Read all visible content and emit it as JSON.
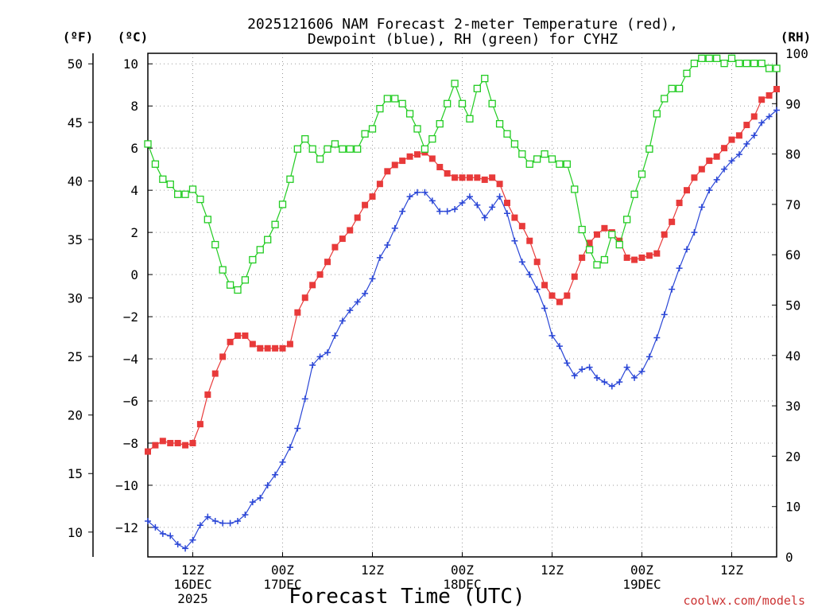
{
  "chart_data": {
    "type": "line",
    "title_lines": [
      "2025121606 NAM Forecast 2-meter Temperature (red),",
      "Dewpoint (blue), RH (green) for CYHZ"
    ],
    "xlabel": "Forecast Time (UTC)",
    "credit": "coolwx.com/models",
    "units": {
      "fahrenheit": "(ºF)",
      "celsius": "(ºC)",
      "rh": "(RH)"
    },
    "x_unit": "hours after 2025-12-16 06Z",
    "x_ticks": [
      {
        "x": 6,
        "lines": [
          "12Z",
          "16DEC",
          "2025"
        ]
      },
      {
        "x": 18,
        "lines": [
          "00Z",
          "17DEC"
        ]
      },
      {
        "x": 30,
        "lines": [
          "12Z"
        ]
      },
      {
        "x": 42,
        "lines": [
          "00Z",
          "18DEC"
        ]
      },
      {
        "x": 54,
        "lines": [
          "12Z"
        ]
      },
      {
        "x": 66,
        "lines": [
          "00Z",
          "19DEC"
        ]
      },
      {
        "x": 78,
        "lines": [
          "12Z"
        ]
      }
    ],
    "celsius_ticks": [
      -12,
      -10,
      -8,
      -6,
      -4,
      -2,
      0,
      2,
      4,
      6,
      8,
      10
    ],
    "fahrenheit_ticks": [
      10,
      15,
      20,
      25,
      30,
      35,
      40,
      45,
      50
    ],
    "rh_ticks": [
      0,
      10,
      20,
      30,
      40,
      50,
      60,
      70,
      80,
      90,
      100
    ],
    "x_range": [
      0,
      84
    ],
    "y_celsius_range": [
      -13.4,
      10.5
    ],
    "y_rh_range": [
      0,
      100
    ],
    "grid": true,
    "series": [
      {
        "name": "2-meter Temperature",
        "color": "#e83a3a",
        "marker": "filled-square",
        "axis": "celsius",
        "x": [
          0,
          1,
          2,
          3,
          4,
          5,
          6,
          7,
          8,
          9,
          10,
          11,
          12,
          13,
          14,
          15,
          16,
          17,
          18,
          19,
          20,
          21,
          22,
          23,
          24,
          25,
          26,
          27,
          28,
          29,
          30,
          31,
          32,
          33,
          34,
          35,
          36,
          37,
          38,
          39,
          40,
          41,
          42,
          43,
          44,
          45,
          46,
          47,
          48,
          49,
          50,
          51,
          52,
          53,
          54,
          55,
          56,
          57,
          58,
          59,
          60,
          61,
          62,
          63,
          64,
          65,
          66,
          67,
          68,
          69,
          70,
          71,
          72,
          73,
          74,
          75,
          76,
          77,
          78,
          79,
          80,
          81,
          82,
          83,
          84
        ],
        "values": [
          -8.4,
          -8.1,
          -7.9,
          -8.0,
          -8.0,
          -8.1,
          -8.0,
          -7.1,
          -5.7,
          -4.7,
          -3.9,
          -3.2,
          -2.9,
          -2.9,
          -3.3,
          -3.5,
          -3.5,
          -3.5,
          -3.5,
          -3.3,
          -1.8,
          -1.1,
          -0.5,
          0.0,
          0.6,
          1.3,
          1.7,
          2.1,
          2.7,
          3.3,
          3.7,
          4.3,
          4.9,
          5.2,
          5.4,
          5.6,
          5.7,
          5.8,
          5.5,
          5.1,
          4.8,
          4.6,
          4.6,
          4.6,
          4.6,
          4.5,
          4.6,
          4.3,
          3.4,
          2.7,
          2.3,
          1.6,
          0.6,
          -0.5,
          -1.0,
          -1.3,
          -1.0,
          -0.1,
          0.8,
          1.5,
          1.9,
          2.2,
          2.0,
          1.6,
          0.8,
          0.7,
          0.8,
          0.9,
          1.0,
          1.9,
          2.5,
          3.4,
          4.0,
          4.6,
          5.0,
          5.4,
          5.6,
          6.0,
          6.4,
          6.6,
          7.1,
          7.5,
          8.3,
          8.5,
          8.8
        ]
      },
      {
        "name": "Dewpoint",
        "color": "#2a46d6",
        "marker": "plus",
        "axis": "celsius",
        "x": [
          0,
          1,
          2,
          3,
          4,
          5,
          6,
          7,
          8,
          9,
          10,
          11,
          12,
          13,
          14,
          15,
          16,
          17,
          18,
          19,
          20,
          21,
          22,
          23,
          24,
          25,
          26,
          27,
          28,
          29,
          30,
          31,
          32,
          33,
          34,
          35,
          36,
          37,
          38,
          39,
          40,
          41,
          42,
          43,
          44,
          45,
          46,
          47,
          48,
          49,
          50,
          51,
          52,
          53,
          54,
          55,
          56,
          57,
          58,
          59,
          60,
          61,
          62,
          63,
          64,
          65,
          66,
          67,
          68,
          69,
          70,
          71,
          72,
          73,
          74,
          75,
          76,
          77,
          78,
          79,
          80,
          81,
          82,
          83,
          84
        ],
        "values": [
          -11.7,
          -12.0,
          -12.3,
          -12.4,
          -12.8,
          -13.0,
          -12.6,
          -11.9,
          -11.5,
          -11.7,
          -11.8,
          -11.8,
          -11.7,
          -11.4,
          -10.8,
          -10.6,
          -10.0,
          -9.5,
          -8.9,
          -8.2,
          -7.3,
          -5.9,
          -4.3,
          -3.9,
          -3.7,
          -2.9,
          -2.2,
          -1.7,
          -1.3,
          -0.9,
          -0.2,
          0.8,
          1.4,
          2.2,
          3.0,
          3.7,
          3.9,
          3.9,
          3.5,
          3.0,
          3.0,
          3.1,
          3.4,
          3.7,
          3.3,
          2.7,
          3.2,
          3.7,
          2.9,
          1.6,
          0.6,
          0.0,
          -0.7,
          -1.6,
          -2.9,
          -3.4,
          -4.2,
          -4.8,
          -4.5,
          -4.4,
          -4.9,
          -5.1,
          -5.3,
          -5.1,
          -4.4,
          -4.9,
          -4.6,
          -3.9,
          -3.0,
          -1.9,
          -0.7,
          0.3,
          1.2,
          2.0,
          3.2,
          4.0,
          4.5,
          5.0,
          5.4,
          5.7,
          6.2,
          6.6,
          7.2,
          7.5,
          7.8
        ]
      },
      {
        "name": "RH",
        "color": "#22cc22",
        "marker": "open-square",
        "axis": "rh",
        "x": [
          0,
          1,
          2,
          3,
          4,
          5,
          6,
          7,
          8,
          9,
          10,
          11,
          12,
          13,
          14,
          15,
          16,
          17,
          18,
          19,
          20,
          21,
          22,
          23,
          24,
          25,
          26,
          27,
          28,
          29,
          30,
          31,
          32,
          33,
          34,
          35,
          36,
          37,
          38,
          39,
          40,
          41,
          42,
          43,
          44,
          45,
          46,
          47,
          48,
          49,
          50,
          51,
          52,
          53,
          54,
          55,
          56,
          57,
          58,
          59,
          60,
          61,
          62,
          63,
          64,
          65,
          66,
          67,
          68,
          69,
          70,
          71,
          72,
          73,
          74,
          75,
          76,
          77,
          78,
          79,
          80,
          81,
          82,
          83,
          84
        ],
        "values": [
          82,
          78,
          75,
          74,
          72,
          72,
          73,
          71,
          67,
          62,
          57,
          54,
          53,
          55,
          59,
          61,
          63,
          66,
          70,
          75,
          81,
          83,
          81,
          79,
          81,
          82,
          81,
          81,
          81,
          84,
          85,
          89,
          91,
          91,
          90,
          88,
          85,
          81,
          83,
          86,
          90,
          94,
          90,
          87,
          93,
          95,
          90,
          86,
          84,
          82,
          80,
          78,
          79,
          80,
          79,
          78,
          78,
          73,
          65,
          61,
          58,
          59,
          64,
          62,
          67,
          72,
          76,
          81,
          88,
          91,
          93,
          93,
          96,
          98,
          99,
          99,
          99,
          98,
          99,
          98,
          98,
          98,
          98,
          97,
          97
        ]
      }
    ]
  }
}
